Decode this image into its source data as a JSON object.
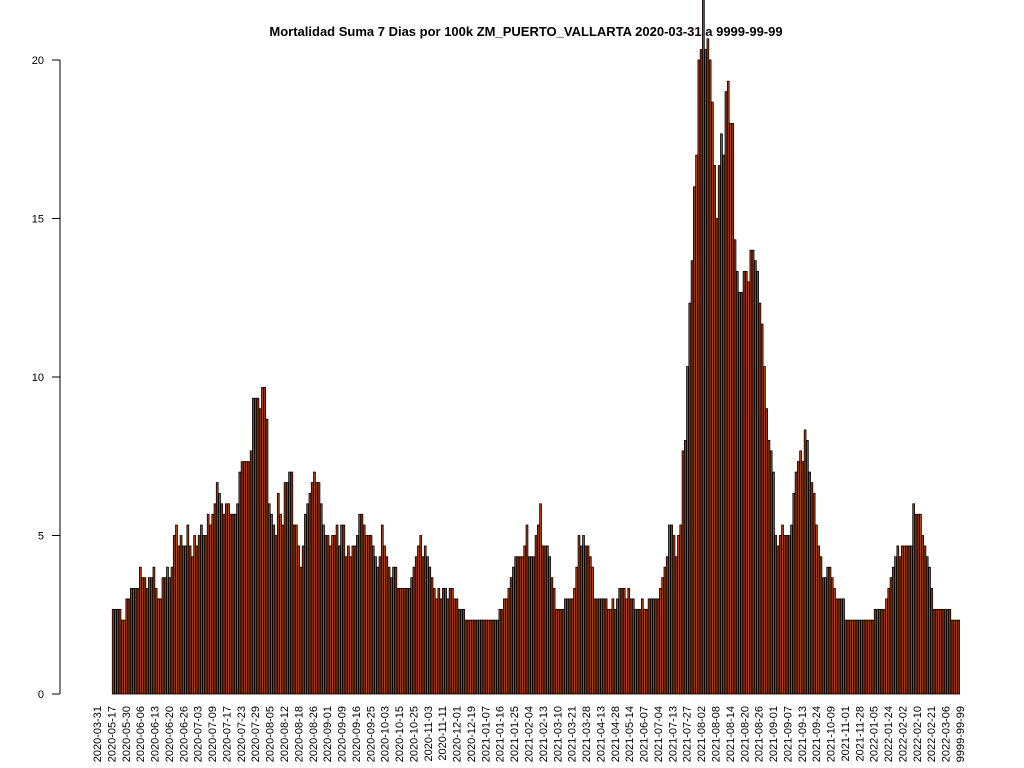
{
  "chart_data": {
    "type": "bar",
    "title": "Mortalidad Suma 7 Dias por 100k ZM_PUERTO_VALLARTA 2020-03-31 a 9999-99-99",
    "xlabel": "",
    "ylabel": "",
    "ylim": [
      0,
      20
    ],
    "y_ticks": [
      0,
      5,
      10,
      15,
      20
    ],
    "bar_color": "#b8441a",
    "bar_border": "#000000",
    "x_tick_labels": [
      "2020-03-31",
      "2020-05-17",
      "2020-05-30",
      "2020-06-06",
      "2020-06-13",
      "2020-06-20",
      "2020-06-26",
      "2020-07-03",
      "2020-07-09",
      "2020-07-17",
      "2020-07-23",
      "2020-07-29",
      "2020-08-05",
      "2020-08-12",
      "2020-08-18",
      "2020-08-26",
      "2020-09-01",
      "2020-09-09",
      "2020-09-16",
      "2020-09-25",
      "2020-10-03",
      "2020-10-15",
      "2020-10-25",
      "2020-11-03",
      "2020-11-11",
      "2020-12-01",
      "2020-12-19",
      "2021-01-07",
      "2021-01-16",
      "2021-01-25",
      "2021-02-04",
      "2021-02-13",
      "2021-03-10",
      "2021-03-21",
      "2021-03-28",
      "2021-04-13",
      "2021-04-28",
      "2021-05-14",
      "2021-06-07",
      "2021-07-04",
      "2021-07-13",
      "2021-07-27",
      "2021-08-02",
      "2021-08-08",
      "2021-08-14",
      "2021-08-20",
      "2021-08-26",
      "2021-09-01",
      "2021-09-07",
      "2021-09-13",
      "2021-09-24",
      "2021-10-09",
      "2021-11-01",
      "2021-11-28",
      "2022-01-05",
      "2022-01-24",
      "2022-02-02",
      "2022-02-10",
      "2022-02-21",
      "2022-03-06",
      "9999-99-99"
    ],
    "values": [
      0,
      0,
      0,
      0,
      0,
      0,
      0,
      0,
      2.67,
      2.67,
      2.67,
      2.67,
      2.33,
      2.33,
      3.0,
      3.0,
      3.33,
      3.33,
      3.33,
      3.33,
      4.0,
      3.67,
      3.67,
      3.33,
      3.67,
      3.67,
      4.0,
      3.33,
      3.0,
      3.0,
      3.67,
      3.67,
      4.0,
      3.67,
      4.0,
      5.0,
      5.33,
      4.67,
      5.0,
      4.67,
      4.67,
      5.33,
      4.67,
      4.33,
      5.0,
      4.67,
      5.0,
      5.33,
      5.0,
      5.0,
      5.67,
      5.33,
      5.67,
      6.0,
      6.67,
      6.33,
      6.0,
      5.67,
      6.0,
      6.0,
      5.67,
      5.67,
      5.67,
      6.0,
      7.0,
      7.33,
      7.33,
      7.33,
      7.33,
      7.67,
      9.33,
      9.33,
      9.33,
      9.0,
      9.67,
      9.67,
      8.67,
      6.0,
      5.67,
      5.33,
      5.0,
      6.33,
      5.67,
      5.33,
      6.67,
      6.67,
      7.0,
      7.0,
      5.33,
      5.33,
      4.67,
      4.0,
      4.67,
      5.67,
      6.0,
      6.33,
      6.67,
      7.0,
      6.67,
      6.67,
      6.0,
      5.33,
      5.0,
      5.0,
      4.67,
      5.0,
      5.0,
      5.33,
      4.67,
      5.33,
      5.33,
      4.33,
      4.67,
      4.33,
      4.67,
      4.67,
      5.0,
      5.67,
      5.67,
      5.33,
      5.0,
      5.0,
      5.0,
      4.67,
      4.33,
      4.0,
      4.33,
      5.33,
      4.67,
      4.33,
      4.0,
      3.67,
      4.0,
      4.0,
      3.33,
      3.33,
      3.33,
      3.33,
      3.33,
      3.33,
      3.67,
      4.0,
      4.33,
      4.67,
      5.0,
      4.33,
      4.67,
      4.33,
      4.0,
      3.67,
      3.33,
      3.0,
      3.33,
      3.0,
      3.33,
      3.33,
      3.0,
      3.33,
      3.33,
      3.0,
      3.0,
      2.67,
      2.67,
      2.67,
      2.33,
      2.33,
      2.33,
      2.33,
      2.33,
      2.33,
      2.33,
      2.33,
      2.33,
      2.33,
      2.33,
      2.33,
      2.33,
      2.33,
      2.33,
      2.67,
      2.67,
      3.0,
      3.0,
      3.33,
      3.67,
      4.0,
      4.33,
      4.33,
      4.33,
      4.33,
      4.67,
      5.33,
      4.33,
      4.33,
      4.33,
      5.0,
      5.33,
      6.0,
      4.67,
      4.67,
      4.67,
      4.33,
      3.67,
      3.33,
      2.67,
      2.67,
      2.67,
      2.67,
      3.0,
      3.0,
      3.0,
      3.0,
      3.33,
      4.0,
      5.0,
      4.67,
      5.0,
      4.67,
      4.67,
      4.33,
      4.0,
      3.0,
      3.0,
      3.0,
      3.0,
      3.0,
      3.0,
      2.67,
      2.67,
      3.0,
      2.67,
      3.0,
      3.33,
      3.33,
      3.33,
      3.0,
      3.33,
      3.0,
      3.0,
      2.67,
      2.67,
      2.67,
      3.0,
      2.67,
      2.67,
      3.0,
      3.0,
      3.0,
      3.0,
      3.0,
      3.33,
      3.67,
      4.0,
      4.33,
      5.33,
      5.33,
      5.0,
      4.33,
      5.0,
      5.33,
      7.67,
      8.0,
      10.33,
      12.33,
      13.67,
      16.0,
      17.0,
      20.0,
      20.33,
      22.0,
      20.33,
      20.67,
      20.0,
      18.67,
      16.67,
      15.0,
      16.67,
      17.67,
      17.0,
      19.0,
      19.33,
      18.0,
      18.0,
      14.33,
      13.33,
      12.67,
      12.67,
      13.33,
      13.33,
      13.0,
      14.0,
      14.0,
      13.67,
      13.33,
      12.33,
      11.67,
      10.33,
      9.0,
      8.0,
      7.67,
      7.0,
      5.0,
      4.67,
      5.0,
      5.33,
      5.0,
      5.0,
      5.0,
      5.33,
      6.33,
      7.0,
      7.33,
      7.67,
      7.33,
      8.33,
      8.0,
      7.0,
      6.67,
      6.33,
      5.33,
      4.67,
      4.33,
      3.67,
      3.67,
      4.0,
      4.0,
      3.67,
      3.33,
      3.0,
      3.0,
      3.0,
      3.0,
      2.33,
      2.33,
      2.33,
      2.33,
      2.33,
      2.33,
      2.33,
      2.33,
      2.33,
      2.33,
      2.33,
      2.33,
      2.33,
      2.67,
      2.67,
      2.67,
      2.67,
      2.67,
      3.0,
      3.33,
      3.67,
      4.0,
      4.33,
      4.67,
      4.33,
      4.67,
      4.67,
      4.67,
      4.67,
      4.67,
      6.0,
      5.67,
      5.67,
      5.67,
      5.0,
      4.67,
      4.33,
      4.0,
      3.33,
      2.67,
      2.67,
      2.67,
      2.67,
      2.67,
      2.67,
      2.67,
      2.67,
      2.33,
      2.33,
      2.33,
      2.33
    ]
  }
}
